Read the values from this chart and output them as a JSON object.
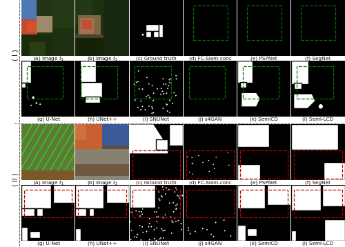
{
  "col_labels_row1": [
    "(a) Image $t_1$",
    "(b) Image $t_2$",
    "(c) Ground truth",
    "(d) FC-Siam-conc",
    "(e) PSPNet",
    "(f) SegNet"
  ],
  "col_labels_row2": [
    "(g) U-Net",
    "(h) UNet++",
    "(i) SNUNet",
    "(j) s4GAN",
    "(k) SemiCD",
    "(l) Semi-LCD"
  ],
  "background_color": "#ffffff",
  "label_fontsize": 5.2,
  "green_rect_color": "#007700",
  "red_rect_color": "#bb0000"
}
